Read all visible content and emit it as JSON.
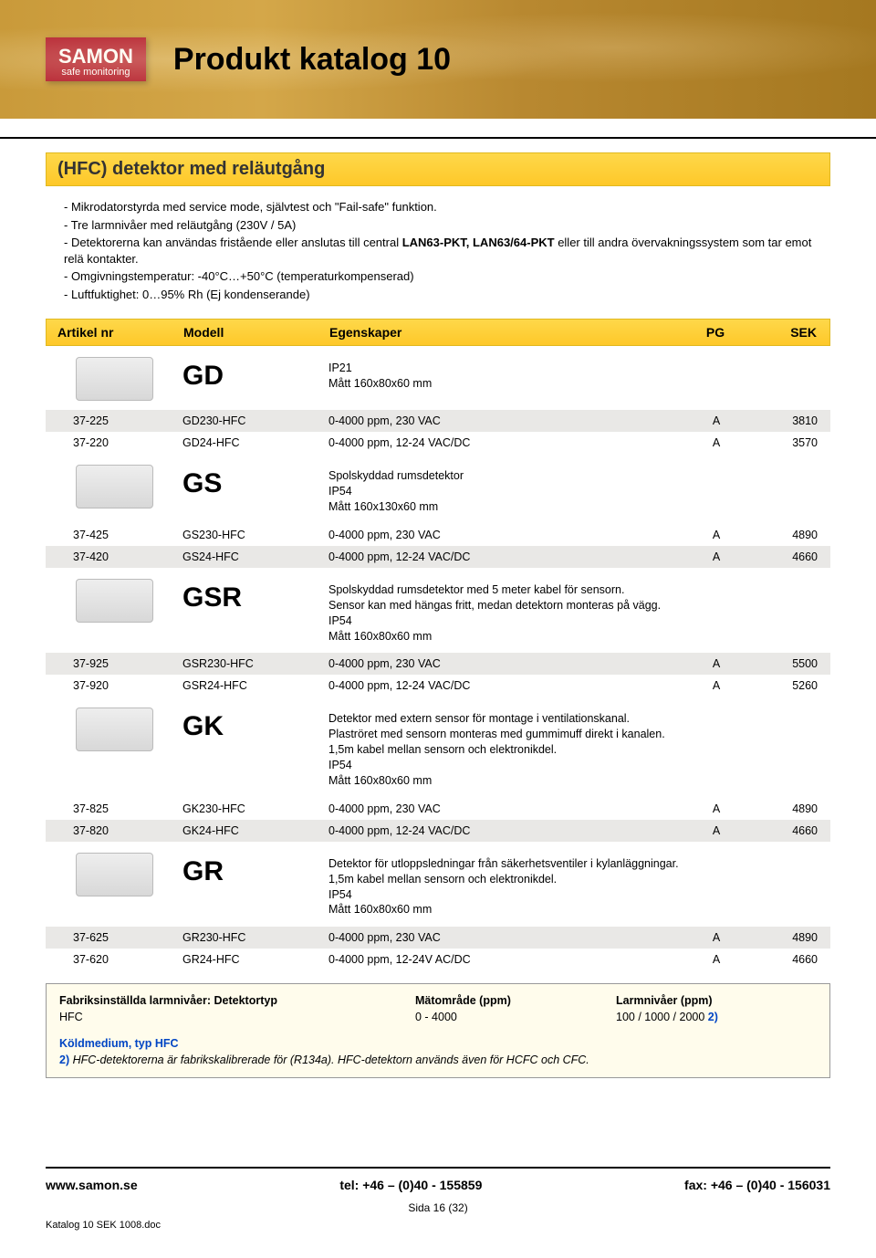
{
  "logo": {
    "main": "SAMON",
    "sub": "safe monitoring"
  },
  "banner_title": "Produkt katalog 10",
  "heading": "(HFC) detektor med reläutgång",
  "intro": {
    "line1": "- Mikrodatorstyrda med service mode, självtest och \"Fail-safe\" funktion.",
    "line2": "- Tre larmnivåer med reläutgång (230V / 5A)",
    "line3a": "- Detektorerna kan användas fristående eller anslutas till central ",
    "line3b": "LAN63-PKT, LAN63/64-PKT",
    "line3c": " eller till andra övervakningssystem som tar emot relä kontakter.",
    "line4": "- Omgivningstemperatur: -40°C…+50°C (temperaturkompenserad)",
    "line5": "- Luftfuktighet: 0…95% Rh (Ej kondenserande)"
  },
  "columns": {
    "art": "Artikel nr",
    "mod": "Modell",
    "egn": "Egenskaper",
    "pg": "PG",
    "sek": "SEK"
  },
  "sections": [
    {
      "code": "GD",
      "desc_lines": [
        "IP21",
        "Mått 160x80x60 mm"
      ],
      "rows": [
        {
          "art": "37-225",
          "mod": "GD230-HFC",
          "egn": "0-4000 ppm, 230 VAC",
          "pg": "A",
          "sek": "3810",
          "shade": "gray"
        },
        {
          "art": "37-220",
          "mod": "GD24-HFC",
          "egn": "0-4000 ppm, 12-24 VAC/DC",
          "pg": "A",
          "sek": "3570",
          "shade": "white"
        }
      ]
    },
    {
      "code": "GS",
      "desc_lines": [
        "Spolskyddad rumsdetektor",
        "IP54",
        "Mått 160x130x60 mm"
      ],
      "rows": [
        {
          "art": "37-425",
          "mod": "GS230-HFC",
          "egn": "0-4000 ppm, 230 VAC",
          "pg": "A",
          "sek": "4890",
          "shade": "white"
        },
        {
          "art": "37-420",
          "mod": "GS24-HFC",
          "egn": "0-4000 ppm, 12-24 VAC/DC",
          "pg": "A",
          "sek": "4660",
          "shade": "gray"
        }
      ]
    },
    {
      "code": "GSR",
      "desc_lines": [
        "Spolskyddad rumsdetektor med 5 meter kabel för sensorn.",
        "Sensor kan med hängas fritt, medan detektorn monteras på vägg.",
        "IP54",
        "Mått 160x80x60 mm"
      ],
      "rows": [
        {
          "art": "37-925",
          "mod": "GSR230-HFC",
          "egn": "0-4000 ppm, 230 VAC",
          "pg": "A",
          "sek": "5500",
          "shade": "gray"
        },
        {
          "art": "37-920",
          "mod": "GSR24-HFC",
          "egn": "0-4000 ppm, 12-24 VAC/DC",
          "pg": "A",
          "sek": "5260",
          "shade": "white"
        }
      ]
    },
    {
      "code": "GK",
      "desc_lines": [
        "Detektor med extern sensor för montage i ventilationskanal.",
        "Plaströret med sensorn monteras med gummimuff direkt i kanalen.",
        "1,5m kabel mellan sensorn och elektronikdel.",
        "IP54",
        "Mått 160x80x60 mm"
      ],
      "rows": [
        {
          "art": "37-825",
          "mod": "GK230-HFC",
          "egn": "0-4000 ppm, 230 VAC",
          "pg": "A",
          "sek": "4890",
          "shade": "white"
        },
        {
          "art": "37-820",
          "mod": "GK24-HFC",
          "egn": "0-4000 ppm, 12-24 VAC/DC",
          "pg": "A",
          "sek": "4660",
          "shade": "gray"
        }
      ]
    },
    {
      "code": "GR",
      "desc_lines": [
        "Detektor för utloppsledningar från säkerhetsventiler i kylanläggningar.",
        "1,5m kabel mellan sensorn och elektronikdel.",
        "IP54",
        "Mått 160x80x60 mm"
      ],
      "rows": [
        {
          "art": "37-625",
          "mod": "GR230-HFC",
          "egn": "0-4000 ppm, 230 VAC",
          "pg": "A",
          "sek": "4890",
          "shade": "gray"
        },
        {
          "art": "37-620",
          "mod": "GR24-HFC",
          "egn": "0-4000 ppm, 12-24V AC/DC",
          "pg": "A",
          "sek": "4660",
          "shade": "white"
        }
      ]
    }
  ],
  "footnote": {
    "h1": "Fabriksinställda larmnivåer: Detektortyp",
    "h2": "Mätområde (ppm)",
    "h3": "Larmnivåer (ppm)",
    "v1": "HFC",
    "v2": "0 - 4000",
    "v3": "100 / 1000 / 2000  ",
    "v3b": "2)",
    "k1": "Köldmedium, typ HFC",
    "k2": "2)",
    "k3": " HFC-detektorerna är fabrikskalibrerade för (R134a). HFC-detektorn används även för HCFC och CFC."
  },
  "footer": {
    "web": "www.samon.se",
    "tel": "tel: +46 – (0)40 - 155859",
    "fax": "fax: +46 – (0)40 - 156031",
    "page": "Sida 16 (32)",
    "file": "Katalog 10 SEK 1008.doc"
  },
  "colors": {
    "banner_bg": "#c99a3a",
    "yellow": "#fed84a",
    "gray_row": "#e9e8e6",
    "footnote_bg": "#fffcec",
    "blue": "#0045c4",
    "logo_red": "#b5202f"
  }
}
